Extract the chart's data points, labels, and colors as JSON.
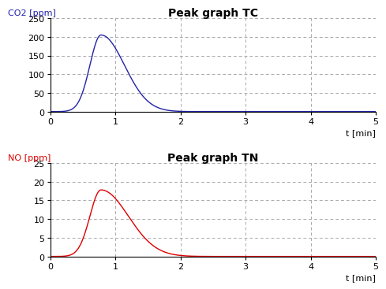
{
  "title_tc": "Peak graph TC",
  "title_tn": "Peak graph TN",
  "ylabel_tc": "CO2 [ppm]",
  "ylabel_tn": "NO [ppm]",
  "xlabel": "t [min]",
  "xlim": [
    0,
    5
  ],
  "ylim_tc": [
    0,
    250
  ],
  "ylim_tn": [
    0,
    25
  ],
  "yticks_tc": [
    0,
    50,
    100,
    150,
    200,
    250
  ],
  "yticks_tn": [
    0,
    5,
    10,
    15,
    20,
    25
  ],
  "xticks": [
    0,
    1,
    2,
    3,
    4,
    5
  ],
  "tc_peak": 205,
  "tc_peak_time": 0.78,
  "tc_rise_sigma": 0.17,
  "tc_fall_sigma": 0.36,
  "tn_peak": 17.8,
  "tn_peak_time": 0.78,
  "tn_rise_sigma": 0.17,
  "tn_fall_sigma": 0.42,
  "tc_color": "#2222AA",
  "tn_color": "#DD0000",
  "ylabel_tc_color": "#2222AA",
  "ylabel_tn_color": "#DD0000",
  "grid_color": "#aaaaaa",
  "grid_linestyle": "--",
  "bg_color": "#ffffff",
  "title_fontsize": 10,
  "label_fontsize": 8,
  "tick_fontsize": 8
}
